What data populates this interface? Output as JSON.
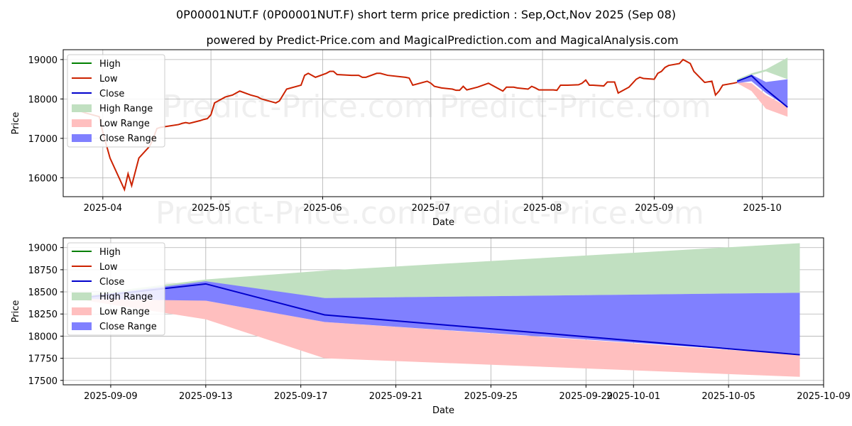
{
  "header": {
    "title": "0P00001NUT.F (0P00001NUT.F) short term price prediction : Sep,Oct,Nov 2025 (Sep 08)",
    "subtitle": "powered by Predict-Price.com and MagicalPrediction.com and MagicalAnalysis.com"
  },
  "watermark": "Predict-Price.com",
  "colors": {
    "high": "#008000",
    "low": "#cc2200",
    "close": "#0000cc",
    "high_range": "#c1e0c1",
    "low_range": "#ffbfbf",
    "close_range": "#8080ff",
    "grid": "#b0b0b0"
  },
  "legend": [
    "High",
    "Low",
    "Close",
    "High Range",
    "Low Range",
    "Close Range"
  ],
  "chart_data": [
    {
      "type": "line",
      "title": "",
      "xlabel": "Date",
      "ylabel": "Price",
      "xlim": [
        "2025-03-21",
        "2025-10-18"
      ],
      "ylim": [
        15520,
        19250
      ],
      "x_ticks": [
        "2025-04-01",
        "2025-05-01",
        "2025-06-01",
        "2025-07-01",
        "2025-08-01",
        "2025-09-01",
        "2025-10-01"
      ],
      "x_tick_labels": [
        "2025-04",
        "2025-05",
        "2025-06",
        "2025-07",
        "2025-08",
        "2025-09",
        "2025-10"
      ],
      "y_ticks": [
        16000,
        17000,
        18000,
        19000
      ],
      "y_tick_labels": [
        "16000",
        "17000",
        "18000",
        "19000"
      ],
      "grid": true,
      "legend_position": "top-left",
      "history": {
        "name": "Low",
        "points": [
          [
            "2025-03-24",
            17750
          ],
          [
            "2025-03-27",
            17650
          ],
          [
            "2025-03-31",
            17550
          ],
          [
            "2025-04-01",
            17150
          ],
          [
            "2025-04-03",
            16500
          ],
          [
            "2025-04-07",
            15700
          ],
          [
            "2025-04-08",
            16100
          ],
          [
            "2025-04-09",
            15800
          ],
          [
            "2025-04-11",
            16500
          ],
          [
            "2025-04-14",
            16800
          ],
          [
            "2025-04-15",
            17000
          ],
          [
            "2025-04-16",
            17250
          ],
          [
            "2025-04-17",
            17280
          ],
          [
            "2025-04-22",
            17350
          ],
          [
            "2025-04-23",
            17380
          ],
          [
            "2025-04-24",
            17400
          ],
          [
            "2025-04-25",
            17380
          ],
          [
            "2025-04-28",
            17450
          ],
          [
            "2025-04-29",
            17480
          ],
          [
            "2025-04-30",
            17500
          ],
          [
            "2025-05-01",
            17600
          ],
          [
            "2025-05-02",
            17900
          ],
          [
            "2025-05-05",
            18050
          ],
          [
            "2025-05-07",
            18100
          ],
          [
            "2025-05-08",
            18150
          ],
          [
            "2025-05-09",
            18200
          ],
          [
            "2025-05-12",
            18100
          ],
          [
            "2025-05-14",
            18050
          ],
          [
            "2025-05-15",
            18000
          ],
          [
            "2025-05-19",
            17900
          ],
          [
            "2025-05-20",
            17950
          ],
          [
            "2025-05-22",
            18250
          ],
          [
            "2025-05-26",
            18350
          ],
          [
            "2025-05-27",
            18600
          ],
          [
            "2025-05-28",
            18650
          ],
          [
            "2025-05-30",
            18550
          ],
          [
            "2025-06-02",
            18650
          ],
          [
            "2025-06-03",
            18700
          ],
          [
            "2025-06-04",
            18700
          ],
          [
            "2025-06-05",
            18620
          ],
          [
            "2025-06-09",
            18600
          ],
          [
            "2025-06-11",
            18600
          ],
          [
            "2025-06-12",
            18550
          ],
          [
            "2025-06-13",
            18550
          ],
          [
            "2025-06-16",
            18650
          ],
          [
            "2025-06-17",
            18650
          ],
          [
            "2025-06-19",
            18600
          ],
          [
            "2025-06-24",
            18550
          ],
          [
            "2025-06-25",
            18530
          ],
          [
            "2025-06-26",
            18350
          ],
          [
            "2025-06-30",
            18450
          ],
          [
            "2025-07-01",
            18400
          ],
          [
            "2025-07-02",
            18320
          ],
          [
            "2025-07-04",
            18280
          ],
          [
            "2025-07-07",
            18250
          ],
          [
            "2025-07-08",
            18220
          ],
          [
            "2025-07-09",
            18220
          ],
          [
            "2025-07-10",
            18320
          ],
          [
            "2025-07-11",
            18230
          ],
          [
            "2025-07-14",
            18300
          ],
          [
            "2025-07-17",
            18400
          ],
          [
            "2025-07-18",
            18350
          ],
          [
            "2025-07-21",
            18200
          ],
          [
            "2025-07-22",
            18300
          ],
          [
            "2025-07-24",
            18300
          ],
          [
            "2025-07-25",
            18280
          ],
          [
            "2025-07-28",
            18250
          ],
          [
            "2025-07-29",
            18320
          ],
          [
            "2025-07-30",
            18280
          ],
          [
            "2025-07-31",
            18230
          ],
          [
            "2025-08-01",
            18230
          ],
          [
            "2025-08-04",
            18230
          ],
          [
            "2025-08-05",
            18220
          ],
          [
            "2025-08-06",
            18350
          ],
          [
            "2025-08-07",
            18350
          ],
          [
            "2025-08-08",
            18350
          ],
          [
            "2025-08-11",
            18360
          ],
          [
            "2025-08-12",
            18400
          ],
          [
            "2025-08-13",
            18480
          ],
          [
            "2025-08-14",
            18350
          ],
          [
            "2025-08-15",
            18350
          ],
          [
            "2025-08-18",
            18330
          ],
          [
            "2025-08-19",
            18430
          ],
          [
            "2025-08-21",
            18430
          ],
          [
            "2025-08-22",
            18150
          ],
          [
            "2025-08-25",
            18300
          ],
          [
            "2025-08-26",
            18400
          ],
          [
            "2025-08-27",
            18500
          ],
          [
            "2025-08-28",
            18550
          ],
          [
            "2025-08-29",
            18520
          ],
          [
            "2025-09-01",
            18500
          ],
          [
            "2025-09-02",
            18650
          ],
          [
            "2025-09-03",
            18700
          ],
          [
            "2025-09-04",
            18800
          ],
          [
            "2025-09-05",
            18850
          ],
          [
            "2025-09-08",
            18900
          ],
          [
            "2025-09-09",
            19000
          ],
          [
            "2025-09-10",
            18950
          ],
          [
            "2025-09-11",
            18900
          ],
          [
            "2025-09-12",
            18700
          ],
          [
            "2025-09-15",
            18420
          ],
          [
            "2025-09-17",
            18450
          ],
          [
            "2025-09-18",
            18100
          ],
          [
            "2025-09-19",
            18200
          ],
          [
            "2025-09-20",
            18350
          ],
          [
            "2025-09-23",
            18400
          ],
          [
            "2025-09-24",
            18420
          ]
        ]
      },
      "forecast": {
        "x": [
          "2025-09-24",
          "2025-09-28",
          "2025-10-02",
          "2025-10-08"
        ],
        "high_range": {
          "low": [
            18420,
            18600,
            18700,
            18500
          ],
          "high": [
            18500,
            18650,
            18750,
            19050
          ]
        },
        "low_range": {
          "low": [
            18400,
            18200,
            17750,
            17550
          ],
          "high": [
            18430,
            18400,
            18100,
            17800
          ]
        },
        "close_range": {
          "low": [
            18400,
            18450,
            18150,
            17800
          ],
          "high": [
            18450,
            18620,
            18430,
            18500
          ]
        },
        "close": [
          18450,
          18590,
          18240,
          17790
        ]
      }
    },
    {
      "type": "line",
      "title": "",
      "xlabel": "Date",
      "ylabel": "Price",
      "xlim": [
        "2025-09-07",
        "2025-10-09"
      ],
      "ylim": [
        17450,
        19110
      ],
      "x_ticks": [
        "2025-09-09",
        "2025-09-13",
        "2025-09-17",
        "2025-09-21",
        "2025-09-25",
        "2025-09-29",
        "2025-10-01",
        "2025-10-05",
        "2025-10-09"
      ],
      "x_tick_labels": [
        "2025-09-09",
        "2025-09-13",
        "2025-09-17",
        "2025-09-21",
        "2025-09-25",
        "2025-09-29",
        "2025-10-01",
        "2025-10-05",
        "2025-10-09"
      ],
      "y_ticks": [
        17500,
        17750,
        18000,
        18250,
        18500,
        18750,
        19000
      ],
      "y_tick_labels": [
        "17500",
        "17750",
        "18000",
        "18250",
        "18500",
        "18750",
        "19000"
      ],
      "grid": true,
      "legend_position": "top-left",
      "forecast": {
        "x": [
          "2025-09-08",
          "2025-09-13",
          "2025-09-18",
          "2025-10-08"
        ],
        "high_range": {
          "low": [
            18440,
            18600,
            18430,
            18490
          ],
          "high": [
            18470,
            18640,
            18740,
            19050
          ]
        },
        "low_range": {
          "low": [
            18400,
            18190,
            17750,
            17540
          ],
          "high": [
            18440,
            18400,
            18160,
            17790
          ]
        },
        "close_range": {
          "low": [
            18420,
            18400,
            18160,
            17800
          ],
          "high": [
            18450,
            18620,
            18430,
            18490
          ]
        },
        "close": [
          18440,
          18590,
          18240,
          17790
        ]
      }
    }
  ]
}
